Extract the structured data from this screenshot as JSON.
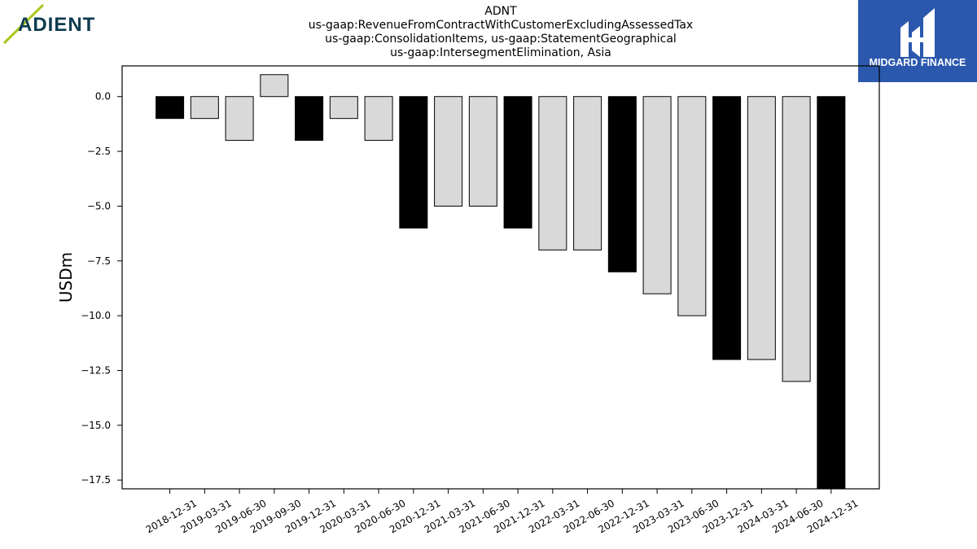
{
  "branding": {
    "left_logo_text": "ADIENT",
    "right_logo_text": "MIDGARD FINANCE",
    "right_logo_bg": "#2b58ad",
    "left_logo_text_color": "#0e3b4f",
    "left_logo_accent": "#a8c81e"
  },
  "chart_data": {
    "type": "bar",
    "title_lines": [
      "ADNT",
      "us-gaap:RevenueFromContractWithCustomerExcludingAssessedTax",
      "us-gaap:ConsolidationItems, us-gaap:StatementGeographical",
      "us-gaap:IntersegmentElimination, Asia"
    ],
    "xlabel": "",
    "ylabel": "USDm",
    "ylim": [
      -17.9,
      1.4
    ],
    "yticks": [
      0.0,
      -2.5,
      -5.0,
      -7.5,
      -10.0,
      -12.5,
      -15.0,
      -17.5
    ],
    "ytick_labels": [
      "0.0",
      "−2.5",
      "−5.0",
      "−7.5",
      "−10.0",
      "−12.5",
      "−15.0",
      "−17.5"
    ],
    "grid": false,
    "categories": [
      "2018-12-31",
      "2019-03-31",
      "2019-06-30",
      "2019-09-30",
      "2019-12-31",
      "2020-03-31",
      "2020-06-30",
      "2020-12-31",
      "2021-03-31",
      "2021-06-30",
      "2021-12-31",
      "2022-03-31",
      "2022-06-30",
      "2022-12-31",
      "2023-03-31",
      "2023-06-30",
      "2023-12-31",
      "2024-03-31",
      "2024-06-30",
      "2024-12-31"
    ],
    "values": [
      -1,
      -1,
      -2,
      1,
      -2,
      -1,
      -2,
      -6,
      -5,
      -5,
      -6,
      -7,
      -7,
      -8,
      -9,
      -10,
      -12,
      -12,
      -13,
      -18
    ],
    "highlight": [
      true,
      false,
      false,
      false,
      true,
      false,
      false,
      true,
      false,
      false,
      true,
      false,
      false,
      true,
      false,
      false,
      true,
      false,
      false,
      true
    ],
    "colors": {
      "highlight": "#000000",
      "normal": "#d9d9d9",
      "edge": "#000000"
    }
  }
}
